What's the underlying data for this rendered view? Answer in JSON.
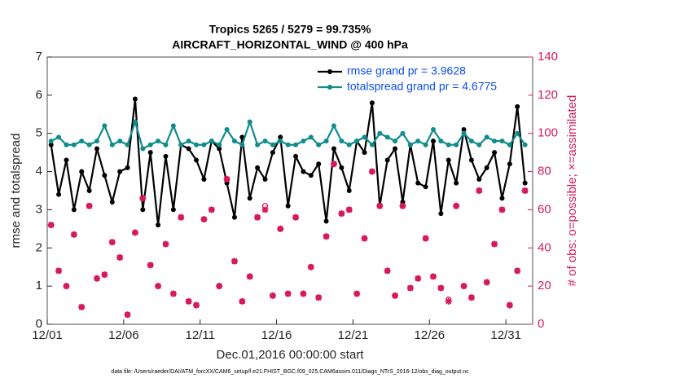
{
  "chart_data": {
    "type": "line",
    "title": "Tropics 5265 / 5279 = 99.735%",
    "subtitle": "AIRCRAFT_HORIZONTAL_WIND @ 400 hPa",
    "x_label": "Dec.01,2016 00:00:00 start",
    "y_label": "rmse and totalspread",
    "y2_label": "# of obs: o=possible; ×=assimilated",
    "footnote": "data file: /Users/raeder/DAI/ATM_forcXX/CAM6_setup/f.e21.FHIST_BGC.f09_025.CAM6assim.011/Diags_NTrS_2016-12/obs_diag_output.nc",
    "x": [
      0.25,
      0.75,
      1.25,
      1.75,
      2.25,
      2.75,
      3.25,
      3.75,
      4.25,
      4.75,
      5.25,
      5.75,
      6.25,
      6.75,
      7.25,
      7.75,
      8.25,
      8.75,
      9.25,
      9.75,
      10.25,
      10.75,
      11.25,
      11.75,
      12.25,
      12.75,
      13.25,
      13.75,
      14.25,
      14.75,
      15.25,
      15.75,
      16.25,
      16.75,
      17.25,
      17.75,
      18.25,
      18.75,
      19.25,
      19.75,
      20.25,
      20.75,
      21.25,
      21.75,
      22.25,
      22.75,
      23.25,
      23.75,
      24.25,
      24.75,
      25.25,
      25.75,
      26.25,
      26.75,
      27.25,
      27.75,
      28.25,
      28.75,
      29.25,
      29.75,
      30.25,
      30.75,
      31.25
    ],
    "xlim": [
      0,
      31.75
    ],
    "xticks": [
      {
        "value": 0,
        "label": "12/01"
      },
      {
        "value": 5,
        "label": "12/06"
      },
      {
        "value": 10,
        "label": "12/11"
      },
      {
        "value": 15,
        "label": "12/16"
      },
      {
        "value": 20,
        "label": "12/21"
      },
      {
        "value": 25,
        "label": "12/26"
      },
      {
        "value": 30,
        "label": "12/31"
      }
    ],
    "ylim": [
      0,
      7
    ],
    "yticks": [
      0,
      1,
      2,
      3,
      4,
      5,
      6,
      7
    ],
    "y2lim": [
      0,
      140
    ],
    "y2ticks": [
      0,
      20,
      40,
      60,
      80,
      100,
      120,
      140
    ],
    "legend": "top right",
    "series": [
      {
        "name": "rmse grand pr = 3.9628",
        "color": "#000000",
        "marker": "filled-circle",
        "values": [
          4.7,
          3.4,
          4.3,
          3.0,
          4.0,
          3.5,
          4.6,
          3.9,
          3.2,
          4.0,
          4.1,
          5.9,
          3.0,
          4.5,
          2.6,
          4.4,
          3.0,
          4.7,
          4.6,
          4.3,
          3.8,
          4.8,
          4.6,
          3.7,
          2.8,
          4.9,
          3.3,
          4.1,
          3.8,
          4.5,
          4.9,
          3.1,
          4.4,
          4.0,
          3.9,
          4.2,
          2.7,
          4.6,
          4.1,
          3.5,
          4.8,
          4.5,
          5.8,
          3.1,
          4.3,
          4.6,
          3.2,
          4.7,
          3.7,
          3.6,
          4.8,
          2.9,
          4.3,
          3.7,
          5.1,
          4.3,
          3.8,
          4.1,
          4.5,
          3.3,
          4.2,
          5.7,
          3.7
        ]
      },
      {
        "name": "totalspread grand pr = 4.6775",
        "color": "#108c8c",
        "marker": "filled-circle",
        "values": [
          4.8,
          4.9,
          4.7,
          4.7,
          4.8,
          4.7,
          4.8,
          5.2,
          4.7,
          4.8,
          4.7,
          5.3,
          4.6,
          4.7,
          4.8,
          4.7,
          5.2,
          4.7,
          4.8,
          4.7,
          4.7,
          4.8,
          4.7,
          5.1,
          4.8,
          4.7,
          5.3,
          4.7,
          4.8,
          4.7,
          4.8,
          4.7,
          4.7,
          4.8,
          4.9,
          4.7,
          4.8,
          5.2,
          4.8,
          4.7,
          4.8,
          4.9,
          4.7,
          5.0,
          4.9,
          4.8,
          5.0,
          4.7,
          4.8,
          4.7,
          5.1,
          4.8,
          4.7,
          4.7,
          5.0,
          4.8,
          4.7,
          4.9,
          4.8,
          4.8,
          4.7,
          5.0,
          4.7
        ]
      },
      {
        "name": "possible",
        "color": "#d6195c",
        "marker": "circle",
        "axis": "y2",
        "values": [
          52,
          28,
          20,
          47,
          9,
          62,
          24,
          26,
          43,
          35,
          5,
          48,
          66,
          31,
          20,
          42,
          16,
          56,
          12,
          10,
          55,
          60,
          20,
          76,
          33,
          12,
          25,
          56,
          62,
          15,
          50,
          16,
          56,
          16,
          30,
          14,
          46,
          84,
          58,
          60,
          16,
          45,
          80,
          62,
          28,
          15,
          62,
          19,
          24,
          45,
          25,
          19,
          13,
          62,
          20,
          14,
          70,
          22,
          42,
          60,
          10,
          28,
          70
        ]
      },
      {
        "name": "assimilated",
        "color": "#d6195c",
        "marker": "x",
        "axis": "y2",
        "values": [
          52,
          28,
          20,
          47,
          9,
          62,
          24,
          26,
          43,
          35,
          5,
          48,
          66,
          31,
          20,
          42,
          16,
          56,
          12,
          10,
          55,
          60,
          20,
          76,
          33,
          12,
          25,
          56,
          60,
          15,
          50,
          16,
          56,
          16,
          30,
          14,
          46,
          84,
          58,
          60,
          16,
          45,
          80,
          62,
          28,
          15,
          62,
          19,
          24,
          45,
          25,
          19,
          12,
          62,
          20,
          14,
          70,
          22,
          42,
          60,
          10,
          28,
          70
        ]
      }
    ]
  }
}
